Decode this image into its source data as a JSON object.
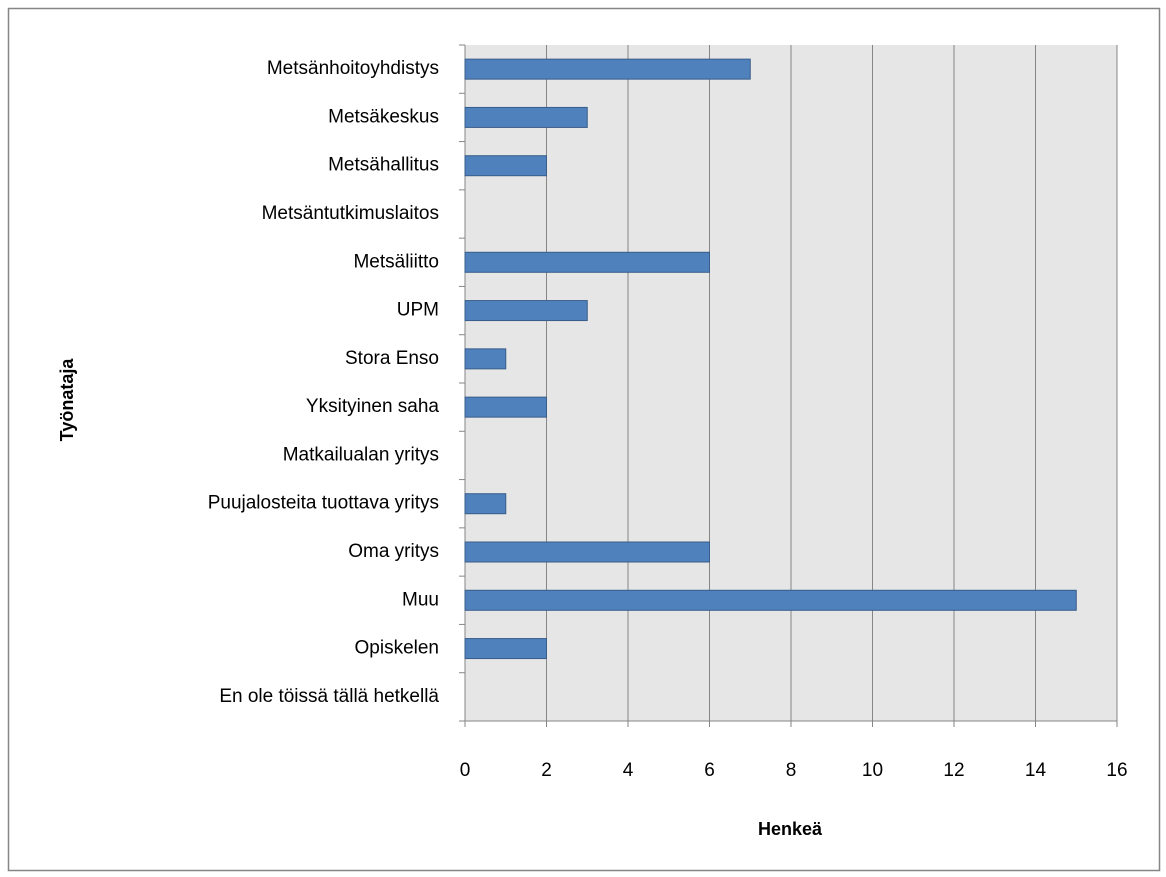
{
  "chart_data": {
    "type": "barh",
    "categories": [
      "Metsänhoitoyhdistys",
      "Metsäkeskus",
      "Metsähallitus",
      "Metsäntutkimuslaitos",
      "Metsäliitto",
      "UPM",
      "Stora Enso",
      "Yksityinen saha",
      "Matkailualan yritys",
      "Puujalosteita tuottava yritys",
      "Oma yritys",
      "Muu",
      "Opiskelen",
      "En ole töissä tällä hetkellä"
    ],
    "values": [
      7,
      3,
      2,
      0,
      6,
      3,
      1,
      2,
      0,
      1,
      6,
      15,
      2,
      0
    ],
    "color": "#4f81bd",
    "xlabel": "Henkeä",
    "ylabel": "Työnataja",
    "xlim": [
      0,
      16
    ],
    "xticks": [
      0,
      2,
      4,
      6,
      8,
      10,
      12,
      14,
      16
    ],
    "grid": true
  }
}
